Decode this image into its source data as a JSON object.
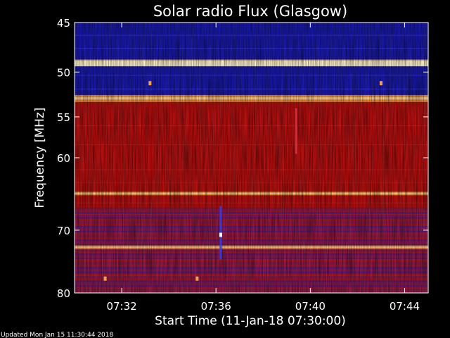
{
  "chart_data": {
    "type": "heatmap",
    "title": "Solar radio Flux (Glasgow)",
    "xlabel": "Start Time (11-Jan-18 07:30:00)",
    "ylabel": "Frequency [MHz]",
    "x_ticks": [
      "07:32",
      "07:36",
      "07:40",
      "07:44"
    ],
    "x_tick_minutes": [
      2,
      6,
      10,
      14
    ],
    "xlim_minutes": [
      0,
      15
    ],
    "y_ticks": [
      45,
      50,
      55,
      60,
      70,
      80
    ],
    "ylim": [
      45,
      80
    ],
    "y_scale": "log",
    "colors": {
      "background": "#000000",
      "low": "#1a1aa8",
      "mid": "#b51010",
      "high": "#ffffff"
    },
    "bands": [
      {
        "from": 45,
        "to": 48.8,
        "level": "low"
      },
      {
        "from": 48.8,
        "to": 49.4,
        "level": "high"
      },
      {
        "from": 49.4,
        "to": 52.5,
        "level": "low"
      },
      {
        "from": 52.5,
        "to": 53.3,
        "level": "bright"
      },
      {
        "from": 53.3,
        "to": 64.5,
        "level": "mid"
      },
      {
        "from": 64.5,
        "to": 65,
        "level": "bright"
      },
      {
        "from": 65,
        "to": 66.8,
        "level": "mid"
      },
      {
        "from": 66.8,
        "to": 72.3,
        "level": "mixed"
      },
      {
        "from": 72.3,
        "to": 72.9,
        "level": "bright"
      },
      {
        "from": 72.9,
        "to": 80,
        "level": "mixed"
      }
    ],
    "features": [
      {
        "minute": 6.2,
        "freq_from": 66.5,
        "freq_to": 74.5,
        "kind": "vertical-streak"
      },
      {
        "minute": 9.4,
        "freq_from": 54,
        "freq_to": 59.5,
        "kind": "vertical-streak"
      },
      {
        "minute": 6.2,
        "freq": 70.7,
        "kind": "hot-spot"
      },
      {
        "minute": 1.3,
        "freq": 77.6,
        "kind": "hot-spot"
      },
      {
        "minute": 5.2,
        "freq": 77.6,
        "kind": "hot-spot"
      },
      {
        "minute": 3.2,
        "freq": 51.2,
        "kind": "hot-spot"
      },
      {
        "minute": 13.0,
        "freq": 51.2,
        "kind": "hot-spot"
      }
    ]
  },
  "footer": {
    "updated": "Updated Mon Jan 15 11:30:44 2018"
  }
}
